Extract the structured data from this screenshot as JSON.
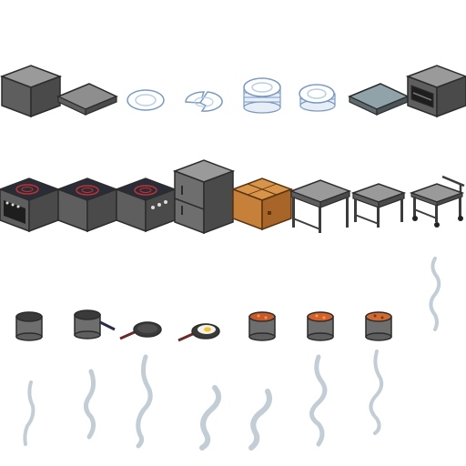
{
  "sheet": {
    "type": "kitchen-sprite-sheet",
    "columns": 8,
    "rows": 4,
    "colors": {
      "steel_top": "#9a9a9a",
      "steel_left": "#5e5e5e",
      "steel_right": "#4a4a4a",
      "outline": "#2c2c2c",
      "cooktop": "#2a2c38",
      "burner_ring": "#c03232",
      "plate": "#ffffff",
      "plate_rim": "#b7cfe8",
      "cardboard": "#c7803a",
      "pan_dark": "#3a3a3a",
      "handle": "#6a2a2a",
      "egg_yolk": "#f1c232",
      "soup": "#d6602a",
      "steam": "#c3cdd6"
    },
    "rows_content": [
      {
        "row": "storage-and-dishes",
        "items": [
          {
            "icon": "steel-counter-block"
          },
          {
            "icon": "steel-tray-flat"
          },
          {
            "icon": "plate-single"
          },
          {
            "icon": "plate-broken"
          },
          {
            "icon": "plate-stack-tall"
          },
          {
            "icon": "plate-stack-short"
          },
          {
            "icon": "glass-tray-flat"
          },
          {
            "icon": "oven-block"
          }
        ]
      },
      {
        "row": "appliances-and-furniture",
        "items": [
          {
            "icon": "stove-with-oven"
          },
          {
            "icon": "induction-hob"
          },
          {
            "icon": "induction-hob-knobs"
          },
          {
            "icon": "fridge-double-door"
          },
          {
            "icon": "cardboard-box"
          },
          {
            "icon": "steel-table-tall"
          },
          {
            "icon": "steel-table-low"
          },
          {
            "icon": "serving-cart"
          }
        ]
      },
      {
        "row": "cookware",
        "items": [
          {
            "icon": "pot-empty"
          },
          {
            "icon": "saucepan"
          },
          {
            "icon": "frying-pan-empty"
          },
          {
            "icon": "frying-pan-egg"
          },
          {
            "icon": "pot-sauce"
          },
          {
            "icon": "pot-soup"
          },
          {
            "icon": "pot-stew"
          },
          {
            "icon": "steam-wisp-small"
          }
        ]
      },
      {
        "row": "steam-animation",
        "items": [
          {
            "icon": "steam-frame-1"
          },
          {
            "icon": "steam-frame-2"
          },
          {
            "icon": "steam-frame-3"
          },
          {
            "icon": "steam-frame-4"
          },
          {
            "icon": "steam-frame-5"
          },
          {
            "icon": "steam-frame-6"
          },
          {
            "icon": "steam-frame-7"
          }
        ]
      }
    ]
  }
}
